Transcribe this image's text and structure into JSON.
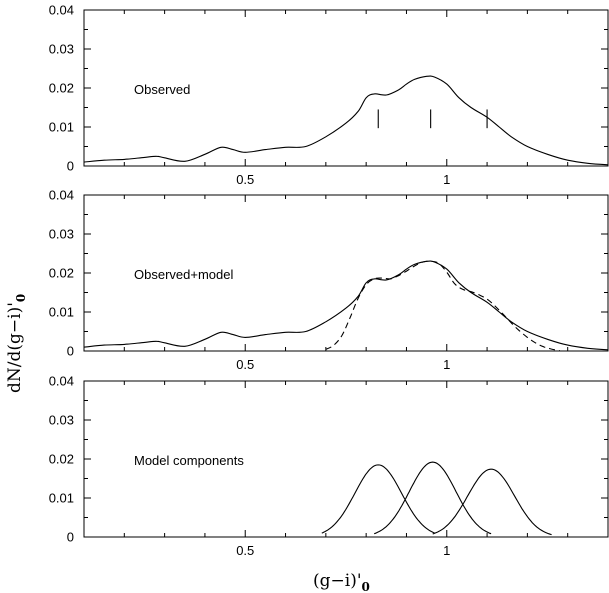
{
  "chart_data": [
    {
      "type": "line",
      "panel_label": "Observed",
      "xlim": [
        0.1,
        1.4
      ],
      "ylim": [
        0,
        0.04
      ],
      "yticks": [
        0,
        0.01,
        0.02,
        0.03,
        0.04
      ],
      "ytick_labels": [
        "0",
        "0.01",
        "0.02",
        "0.03",
        "0.04"
      ],
      "xticks": [
        0.5,
        1
      ],
      "xtick_labels": [
        "0.5",
        "1"
      ],
      "series": [
        {
          "style": "solid",
          "x": [
            0.1,
            0.15,
            0.2,
            0.25,
            0.28,
            0.3,
            0.35,
            0.4,
            0.44,
            0.47,
            0.5,
            0.55,
            0.6,
            0.65,
            0.7,
            0.75,
            0.78,
            0.8,
            0.82,
            0.85,
            0.88,
            0.9,
            0.92,
            0.95,
            0.97,
            1.0,
            1.03,
            1.06,
            1.1,
            1.13,
            1.16,
            1.2,
            1.25,
            1.3,
            1.35,
            1.4
          ],
          "y": [
            0.001,
            0.0015,
            0.0017,
            0.0022,
            0.0025,
            0.0021,
            0.0012,
            0.003,
            0.0048,
            0.0042,
            0.0035,
            0.0042,
            0.0048,
            0.005,
            0.0075,
            0.011,
            0.014,
            0.0175,
            0.0185,
            0.0182,
            0.0195,
            0.021,
            0.0222,
            0.023,
            0.0228,
            0.021,
            0.0175,
            0.015,
            0.0125,
            0.01,
            0.0075,
            0.005,
            0.003,
            0.0015,
            0.0007,
            0.0003
          ]
        }
      ],
      "markers_x": [
        0.83,
        0.96,
        1.1
      ]
    },
    {
      "type": "line",
      "panel_label": "Observed+model",
      "xlim": [
        0.1,
        1.4
      ],
      "ylim": [
        0,
        0.04
      ],
      "yticks": [
        0,
        0.01,
        0.02,
        0.03,
        0.04
      ],
      "ytick_labels": [
        "0",
        "0.01",
        "0.02",
        "0.03",
        "0.04"
      ],
      "xticks": [
        0.5,
        1
      ],
      "xtick_labels": [
        "0.5",
        "1"
      ],
      "series": [
        {
          "style": "solid",
          "x": [
            0.1,
            0.15,
            0.2,
            0.25,
            0.28,
            0.3,
            0.35,
            0.4,
            0.44,
            0.47,
            0.5,
            0.55,
            0.6,
            0.65,
            0.7,
            0.75,
            0.78,
            0.8,
            0.82,
            0.85,
            0.88,
            0.9,
            0.92,
            0.95,
            0.97,
            1.0,
            1.03,
            1.06,
            1.1,
            1.13,
            1.16,
            1.2,
            1.25,
            1.3,
            1.35,
            1.4
          ],
          "y": [
            0.001,
            0.0015,
            0.0017,
            0.0022,
            0.0025,
            0.0021,
            0.0012,
            0.003,
            0.0048,
            0.0042,
            0.0035,
            0.0042,
            0.0048,
            0.005,
            0.0075,
            0.011,
            0.014,
            0.0175,
            0.0185,
            0.0182,
            0.0195,
            0.021,
            0.0222,
            0.023,
            0.0228,
            0.021,
            0.0175,
            0.015,
            0.0125,
            0.01,
            0.0075,
            0.005,
            0.003,
            0.0015,
            0.0007,
            0.0003
          ]
        },
        {
          "style": "dashed",
          "x": [
            0.7,
            0.72,
            0.74,
            0.76,
            0.78,
            0.8,
            0.82,
            0.84,
            0.86,
            0.88,
            0.9,
            0.92,
            0.94,
            0.96,
            0.98,
            1.0,
            1.02,
            1.04,
            1.06,
            1.08,
            1.1,
            1.12,
            1.14,
            1.16,
            1.18,
            1.2,
            1.22,
            1.24,
            1.26,
            1.28
          ],
          "y": [
            0.0004,
            0.0015,
            0.004,
            0.0085,
            0.0135,
            0.017,
            0.0185,
            0.0187,
            0.0185,
            0.0193,
            0.0205,
            0.0218,
            0.0228,
            0.023,
            0.0225,
            0.0202,
            0.0172,
            0.0158,
            0.0152,
            0.0144,
            0.0133,
            0.0115,
            0.0094,
            0.0072,
            0.0052,
            0.0035,
            0.0021,
            0.0011,
            0.0005,
            0.0001
          ]
        }
      ]
    },
    {
      "type": "line",
      "panel_label": "Model components",
      "xlim": [
        0.1,
        1.4
      ],
      "ylim": [
        0,
        0.04
      ],
      "yticks": [
        0,
        0.01,
        0.02,
        0.03,
        0.04
      ],
      "ytick_labels": [
        "0",
        "0.01",
        "0.02",
        "0.03",
        "0.04"
      ],
      "xticks": [
        0.5,
        1
      ],
      "xtick_labels": [
        "0.5",
        "1"
      ],
      "gaussians": [
        {
          "mu": 0.83,
          "sigma": 0.058,
          "amp": 0.0185,
          "xmin": 0.69,
          "xmax": 0.97
        },
        {
          "mu": 0.965,
          "sigma": 0.058,
          "amp": 0.0192,
          "xmin": 0.82,
          "xmax": 1.11
        },
        {
          "mu": 1.11,
          "sigma": 0.058,
          "amp": 0.0174,
          "xmin": 0.965,
          "xmax": 1.26
        }
      ]
    }
  ],
  "axes": {
    "xlabel_main": "(g−i)'",
    "xlabel_sub": "0",
    "ylabel_main": "dN/d(g−i)'",
    "ylabel_sub": "0"
  }
}
